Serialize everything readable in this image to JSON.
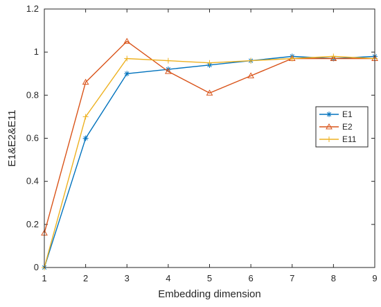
{
  "chart_data": {
    "type": "line",
    "x": [
      1,
      2,
      3,
      4,
      5,
      6,
      7,
      8,
      9
    ],
    "series": [
      {
        "name": "E1",
        "values": [
          0,
          0.6,
          0.9,
          0.92,
          0.94,
          0.96,
          0.98,
          0.97,
          0.98
        ],
        "color": "#0072BD",
        "marker": "asterisk"
      },
      {
        "name": "E2",
        "values": [
          0.16,
          0.86,
          1.05,
          0.91,
          0.81,
          0.89,
          0.97,
          0.97,
          0.97
        ],
        "color": "#D95319",
        "marker": "triangle"
      },
      {
        "name": "E11",
        "values": [
          0,
          0.7,
          0.97,
          0.96,
          0.95,
          0.96,
          0.97,
          0.98,
          0.97
        ],
        "color": "#EDB120",
        "marker": "plus"
      }
    ],
    "xlabel": "Embedding dimension",
    "ylabel": "E1&E2&E11",
    "xlim": [
      1,
      9
    ],
    "ylim": [
      0,
      1.2
    ],
    "xticks": [
      1,
      2,
      3,
      4,
      5,
      6,
      7,
      8,
      9
    ],
    "yticks": [
      0,
      0.2,
      0.4,
      0.6,
      0.8,
      1,
      1.2
    ],
    "grid": false,
    "legend_position": "right"
  }
}
